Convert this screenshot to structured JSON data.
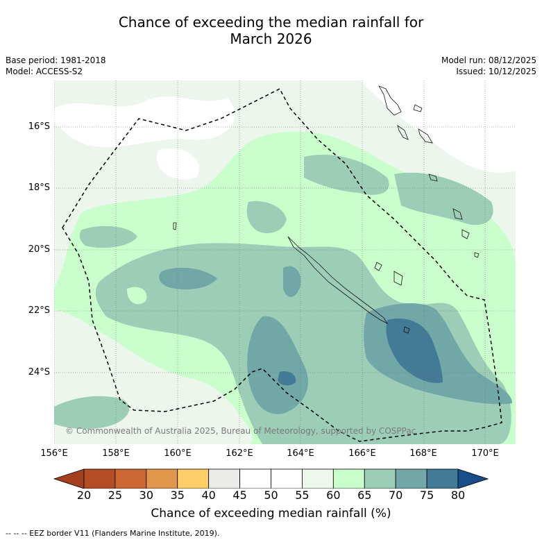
{
  "title": {
    "line1": "Chance of exceeding the median rainfall for",
    "line2": "March 2026"
  },
  "meta": {
    "base_period": "Base period: 1981-2018",
    "model": "Model: ACCESS-S2",
    "model_run": "Model run: 08/12/2025",
    "issued": "Issued: 10/12/2025"
  },
  "axes": {
    "lat_labels": [
      "16°S",
      "18°S",
      "20°S",
      "22°S",
      "24°S"
    ],
    "lon_labels": [
      "156°E",
      "158°E",
      "160°E",
      "162°E",
      "164°E",
      "166°E",
      "168°E",
      "170°E"
    ]
  },
  "copyright": "© Commonwealth of Australia 2025, Bureau of Meteorology, supported by COSPPac",
  "colorbar": {
    "ticks": [
      "20",
      "25",
      "30",
      "35",
      "40",
      "45",
      "50",
      "55",
      "60",
      "65",
      "70",
      "75",
      "80"
    ],
    "colors": [
      "#a63f1f",
      "#b44c24",
      "#cd6733",
      "#e2964b",
      "#fecf68",
      "#ebebea",
      "#ffffff",
      "#ffffff",
      "#edf7ec",
      "#cafecc",
      "#9ccdb6",
      "#72a7a8",
      "#437a96",
      "#184d89"
    ],
    "label": "Chance of exceeding median rainfall (%)"
  },
  "legend_note": "--  --  -- EEZ border V11 (Flanders Marine Institute, 2019)."
}
